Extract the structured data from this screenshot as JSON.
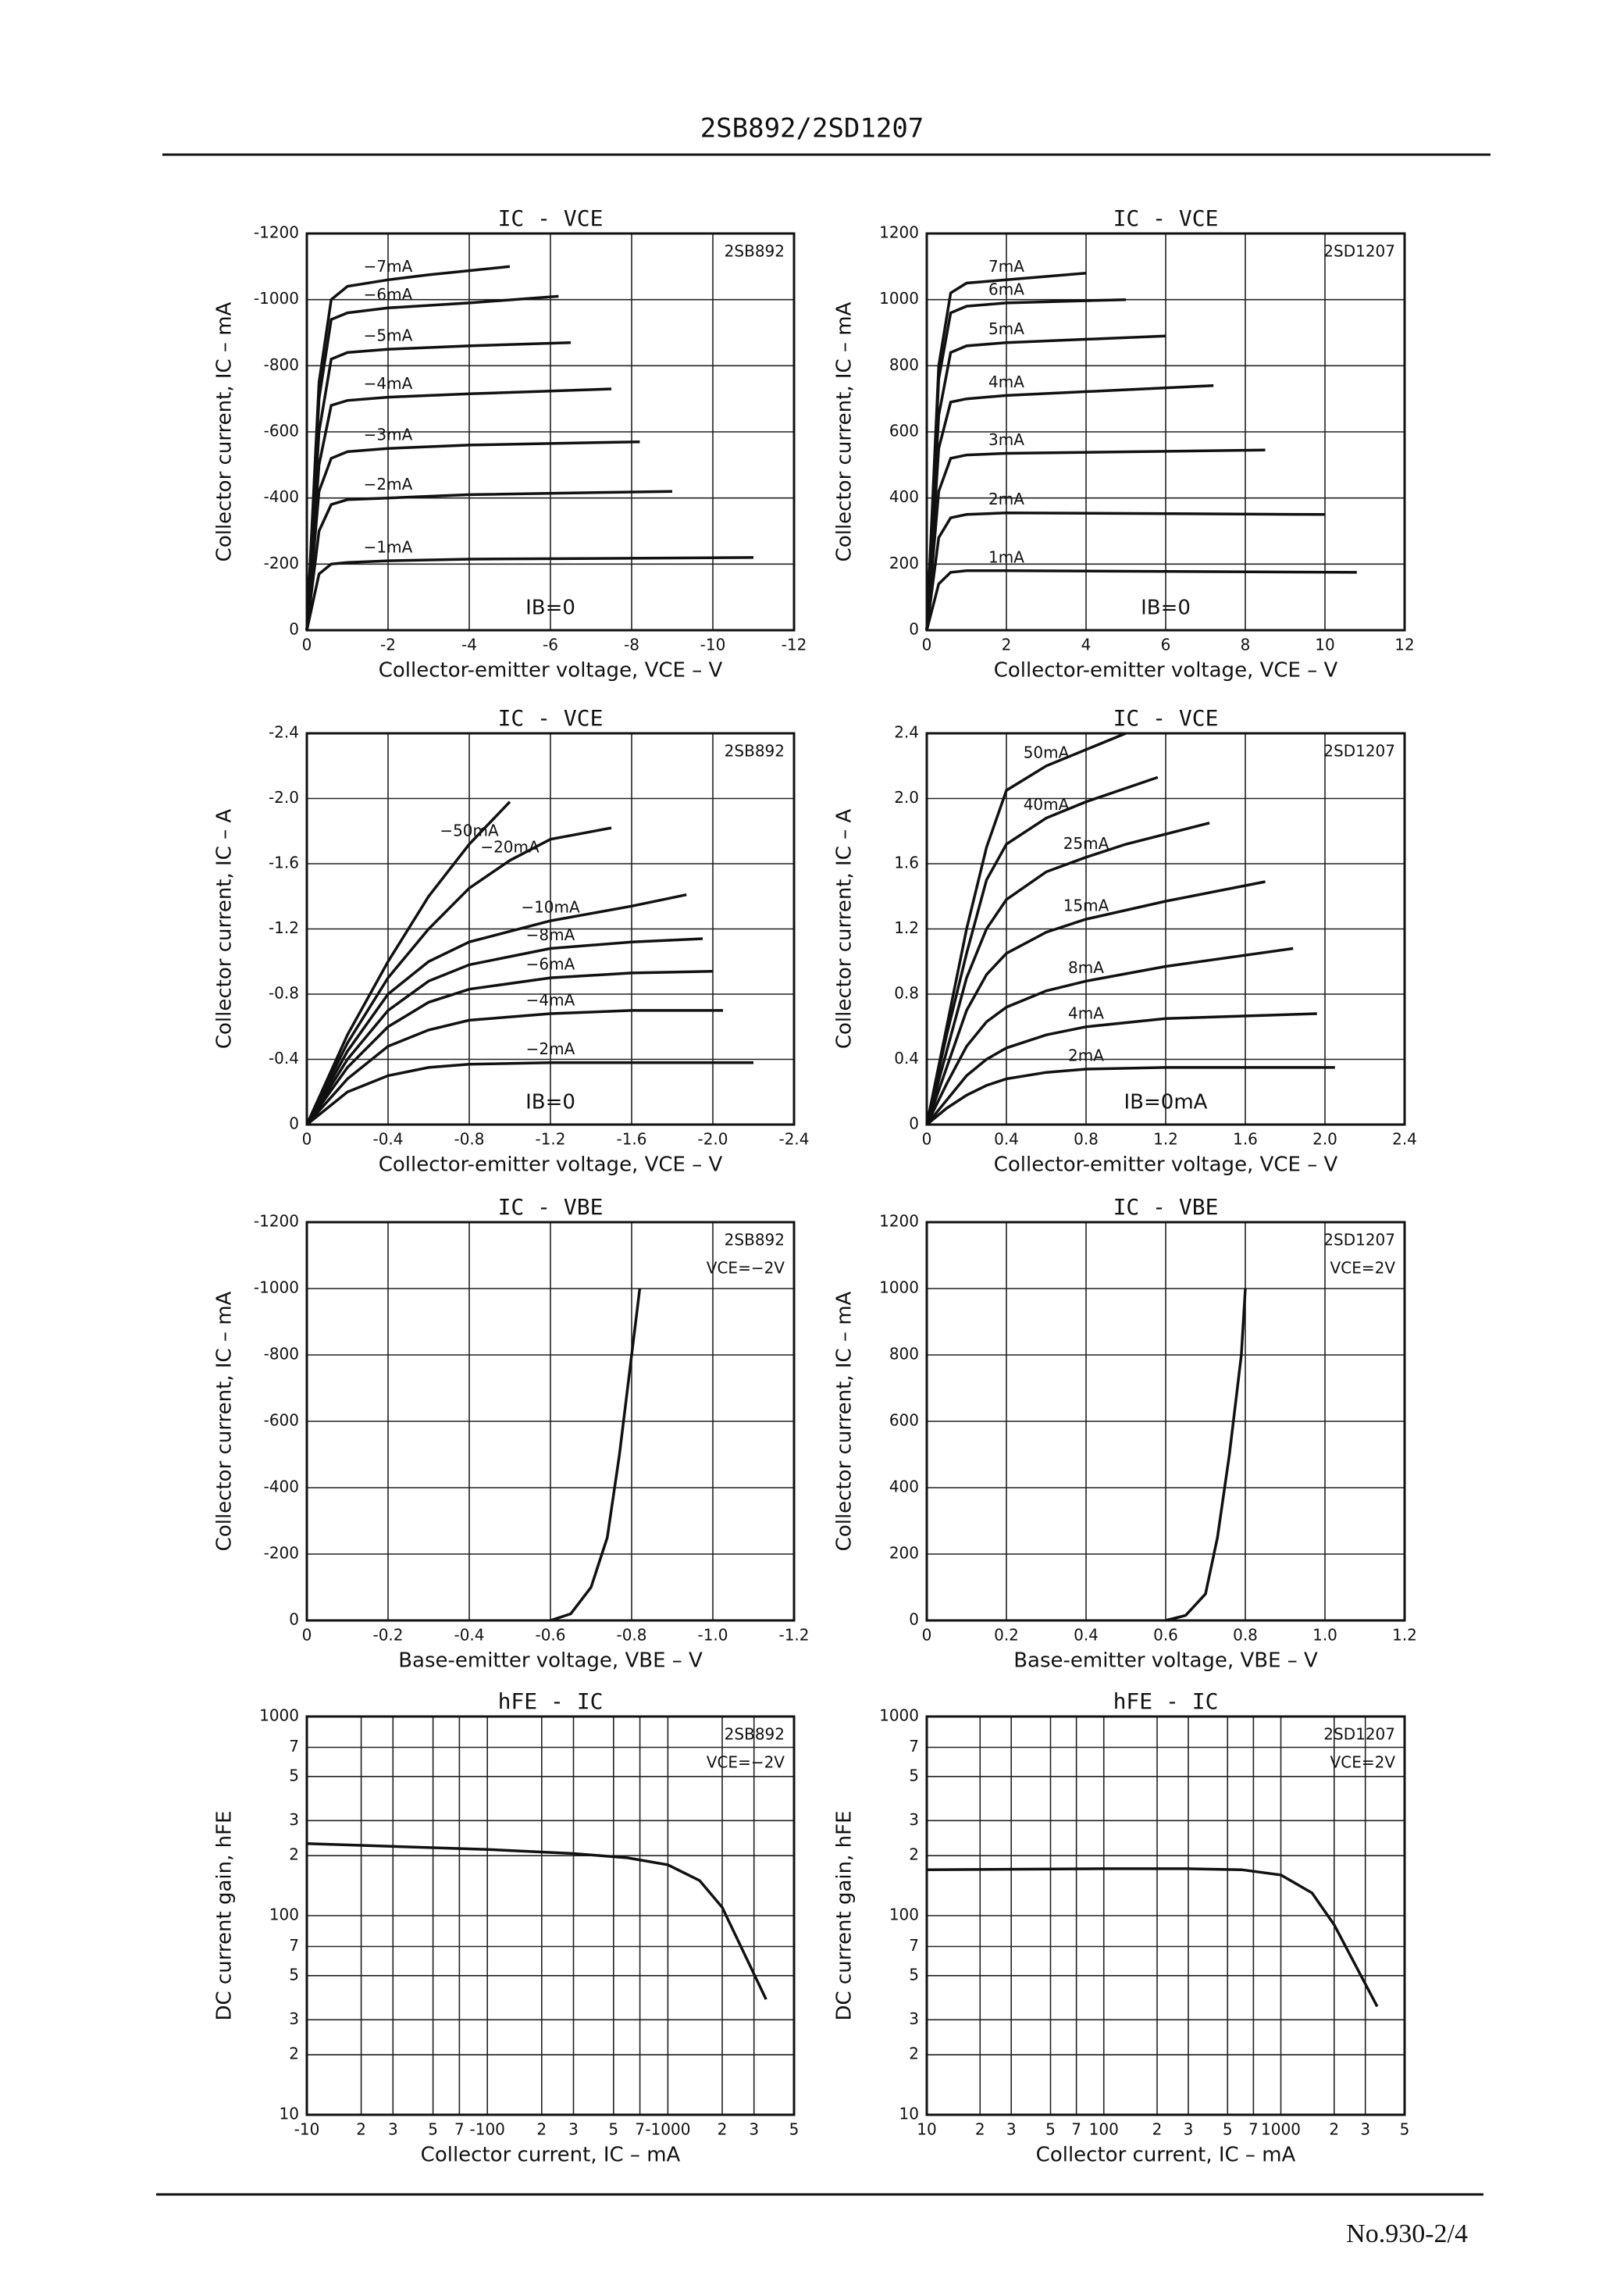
{
  "header": {
    "title": "2SB892/2SD1207"
  },
  "footer": {
    "page": "No.930-2/4"
  },
  "chart_data": [
    {
      "type": "line",
      "title": "IC - VCE",
      "device": "2SB892",
      "note": "IB=0",
      "xlabel": "Collector-emitter voltage, VCE – V",
      "ylabel": "Collector current, IC – mA",
      "xlim": [
        0,
        -12
      ],
      "ylim": [
        0,
        -1200
      ],
      "xticks": [
        0,
        -2,
        -4,
        -6,
        -8,
        -10,
        -12
      ],
      "yticks": [
        0,
        -200,
        -400,
        -600,
        -800,
        -1000,
        -1200
      ],
      "grid": true,
      "series": [
        {
          "name": "−7mA",
          "x": [
            0,
            -0.3,
            -0.6,
            -1,
            -2,
            -3,
            -5
          ],
          "values": [
            0,
            -750,
            -1000,
            -1040,
            -1060,
            -1075,
            -1100
          ]
        },
        {
          "name": "−6mA",
          "x": [
            0,
            -0.3,
            -0.6,
            -1,
            -2,
            -4,
            -6.2
          ],
          "values": [
            0,
            -700,
            -940,
            -960,
            -975,
            -990,
            -1010
          ]
        },
        {
          "name": "−5mA",
          "x": [
            0,
            -0.3,
            -0.6,
            -1,
            -2,
            -4,
            -6.5
          ],
          "values": [
            0,
            -600,
            -820,
            -840,
            -850,
            -860,
            -870
          ]
        },
        {
          "name": "−4mA",
          "x": [
            0,
            -0.3,
            -0.6,
            -1,
            -2,
            -4,
            -7.5
          ],
          "values": [
            0,
            -500,
            -680,
            -695,
            -705,
            -715,
            -730
          ]
        },
        {
          "name": "−3mA",
          "x": [
            0,
            -0.3,
            -0.6,
            -1,
            -2,
            -4,
            -8.2
          ],
          "values": [
            0,
            -420,
            -520,
            -540,
            -550,
            -560,
            -570
          ]
        },
        {
          "name": "−2mA",
          "x": [
            0,
            -0.3,
            -0.6,
            -1,
            -2,
            -4,
            -9
          ],
          "values": [
            0,
            -300,
            -380,
            -395,
            -400,
            -410,
            -420
          ]
        },
        {
          "name": "−1mA",
          "x": [
            0,
            -0.3,
            -0.6,
            -1,
            -2,
            -4,
            -11
          ],
          "values": [
            0,
            -170,
            -200,
            -205,
            -210,
            -215,
            -220
          ]
        }
      ]
    },
    {
      "type": "line",
      "title": "IC - VCE",
      "device": "2SD1207",
      "note": "IB=0",
      "xlabel": "Collector-emitter voltage, VCE – V",
      "ylabel": "Collector current, IC – mA",
      "xlim": [
        0,
        12
      ],
      "ylim": [
        0,
        1200
      ],
      "xticks": [
        0,
        2,
        4,
        6,
        8,
        10,
        12
      ],
      "yticks": [
        0,
        200,
        400,
        600,
        800,
        1000,
        1200
      ],
      "grid": true,
      "series": [
        {
          "name": "7mA",
          "x": [
            0,
            0.3,
            0.6,
            1,
            2,
            4
          ],
          "values": [
            0,
            800,
            1020,
            1050,
            1060,
            1080
          ]
        },
        {
          "name": "6mA",
          "x": [
            0,
            0.3,
            0.6,
            1,
            2,
            5
          ],
          "values": [
            0,
            760,
            960,
            980,
            990,
            1000
          ]
        },
        {
          "name": "5mA",
          "x": [
            0,
            0.3,
            0.6,
            1,
            2,
            6
          ],
          "values": [
            0,
            650,
            840,
            860,
            870,
            890
          ]
        },
        {
          "name": "4mA",
          "x": [
            0,
            0.3,
            0.6,
            1,
            2,
            7.2
          ],
          "values": [
            0,
            550,
            690,
            700,
            710,
            740
          ]
        },
        {
          "name": "3mA",
          "x": [
            0,
            0.3,
            0.6,
            1,
            2,
            8.5
          ],
          "values": [
            0,
            420,
            520,
            530,
            535,
            545
          ]
        },
        {
          "name": "2mA",
          "x": [
            0,
            0.3,
            0.6,
            1,
            2,
            10
          ],
          "values": [
            0,
            280,
            340,
            350,
            355,
            350
          ]
        },
        {
          "name": "1mA",
          "x": [
            0,
            0.3,
            0.6,
            1,
            2,
            10.8
          ],
          "values": [
            0,
            140,
            175,
            180,
            180,
            175
          ]
        }
      ]
    },
    {
      "type": "line",
      "title": "IC - VCE",
      "device": "2SB892",
      "note": "IB=0",
      "xlabel": "Collector-emitter voltage, VCE – V",
      "ylabel": "Collector current, IC – A",
      "xlim": [
        0,
        -2.4
      ],
      "ylim": [
        0,
        -2.4
      ],
      "xticks": [
        0,
        -0.4,
        -0.8,
        -1.2,
        -1.6,
        {
          "value": -2,
          "label": "-2.0"
        },
        -2.4
      ],
      "yticks": [
        0,
        -0.4,
        -0.8,
        -1.2,
        -1.6,
        {
          "value": -2,
          "label": "-2.0"
        },
        -2.4
      ],
      "grid": true,
      "series": [
        {
          "name": "−50mA",
          "x": [
            0,
            -0.2,
            -0.4,
            -0.6,
            -0.8,
            -1.0
          ],
          "values": [
            0,
            -0.55,
            -1.0,
            -1.4,
            -1.72,
            -1.98
          ]
        },
        {
          "name": "−20mA",
          "x": [
            0,
            -0.2,
            -0.4,
            -0.6,
            -0.8,
            -1.0,
            -1.2,
            -1.5
          ],
          "values": [
            0,
            -0.5,
            -0.9,
            -1.2,
            -1.45,
            -1.62,
            -1.75,
            -1.82
          ]
        },
        {
          "name": "−10mA",
          "x": [
            0,
            -0.2,
            -0.4,
            -0.6,
            -0.8,
            -1.2,
            -1.6,
            -1.87
          ],
          "values": [
            0,
            -0.45,
            -0.8,
            -1.0,
            -1.12,
            -1.25,
            -1.34,
            -1.41
          ]
        },
        {
          "name": "−8mA",
          "x": [
            0,
            -0.2,
            -0.4,
            -0.6,
            -0.8,
            -1.2,
            -1.6,
            -1.95
          ],
          "values": [
            0,
            -0.4,
            -0.7,
            -0.88,
            -0.98,
            -1.08,
            -1.12,
            -1.14
          ]
        },
        {
          "name": "−6mA",
          "x": [
            0,
            -0.2,
            -0.4,
            -0.6,
            -0.8,
            -1.2,
            -1.6,
            -2.0
          ],
          "values": [
            0,
            -0.35,
            -0.6,
            -0.75,
            -0.83,
            -0.9,
            -0.93,
            -0.94
          ]
        },
        {
          "name": "−4mA",
          "x": [
            0,
            -0.2,
            -0.4,
            -0.6,
            -0.8,
            -1.2,
            -1.6,
            -2.05
          ],
          "values": [
            0,
            -0.28,
            -0.48,
            -0.58,
            -0.64,
            -0.68,
            -0.7,
            -0.7
          ]
        },
        {
          "name": "−2mA",
          "x": [
            0,
            -0.2,
            -0.4,
            -0.6,
            -0.8,
            -1.2,
            -1.6,
            -2.2
          ],
          "values": [
            0,
            -0.2,
            -0.3,
            -0.35,
            -0.37,
            -0.38,
            -0.38,
            -0.38
          ]
        }
      ]
    },
    {
      "type": "line",
      "title": "IC - VCE",
      "device": "2SD1207",
      "note": "IB=0mA",
      "xlabel": "Collector-emitter voltage, VCE – V",
      "ylabel": "Collector current, IC – A",
      "xlim": [
        0,
        2.4
      ],
      "ylim": [
        0,
        2.4
      ],
      "xticks": [
        0,
        0.4,
        0.8,
        1.2,
        1.6,
        {
          "value": 2,
          "label": "2.0"
        },
        2.4
      ],
      "yticks": [
        0,
        0.4,
        0.8,
        1.2,
        1.6,
        {
          "value": 2,
          "label": "2.0"
        },
        2.4
      ],
      "grid": true,
      "series": [
        {
          "name": "50mA",
          "x": [
            0,
            0.1,
            0.2,
            0.3,
            0.4,
            0.6,
            0.8,
            1.0
          ],
          "values": [
            0,
            0.6,
            1.2,
            1.7,
            2.05,
            2.2,
            2.3,
            2.4
          ]
        },
        {
          "name": "40mA",
          "x": [
            0,
            0.1,
            0.2,
            0.3,
            0.4,
            0.6,
            0.8,
            1.16
          ],
          "values": [
            0,
            0.55,
            1.05,
            1.5,
            1.72,
            1.88,
            1.98,
            2.13
          ]
        },
        {
          "name": "25mA",
          "x": [
            0,
            0.1,
            0.2,
            0.3,
            0.4,
            0.6,
            0.8,
            1.0,
            1.42
          ],
          "values": [
            0,
            0.45,
            0.9,
            1.2,
            1.38,
            1.55,
            1.64,
            1.72,
            1.85
          ]
        },
        {
          "name": "15mA",
          "x": [
            0,
            0.1,
            0.2,
            0.3,
            0.4,
            0.6,
            0.8,
            1.2,
            1.7
          ],
          "values": [
            0,
            0.35,
            0.7,
            0.92,
            1.05,
            1.18,
            1.26,
            1.37,
            1.49
          ]
        },
        {
          "name": "8mA",
          "x": [
            0,
            0.1,
            0.2,
            0.3,
            0.4,
            0.6,
            0.8,
            1.2,
            1.84
          ],
          "values": [
            0,
            0.25,
            0.48,
            0.63,
            0.72,
            0.82,
            0.88,
            0.97,
            1.08
          ]
        },
        {
          "name": "4mA",
          "x": [
            0,
            0.1,
            0.2,
            0.3,
            0.4,
            0.6,
            0.8,
            1.2,
            1.96
          ],
          "values": [
            0,
            0.15,
            0.3,
            0.4,
            0.47,
            0.55,
            0.6,
            0.65,
            0.68
          ]
        },
        {
          "name": "2mA",
          "x": [
            0,
            0.1,
            0.2,
            0.3,
            0.4,
            0.6,
            0.8,
            1.2,
            2.05
          ],
          "values": [
            0,
            0.1,
            0.18,
            0.24,
            0.28,
            0.32,
            0.34,
            0.35,
            0.35
          ]
        }
      ]
    },
    {
      "type": "line",
      "title": "IC - VBE",
      "device": "2SB892",
      "condition": "VCE=−2V",
      "xlabel": "Base-emitter voltage, VBE – V",
      "ylabel": "Collector current, IC – mA",
      "xlim": [
        0,
        -1.2
      ],
      "ylim": [
        0,
        -1200
      ],
      "xticks": [
        0,
        -0.2,
        -0.4,
        -0.6,
        -0.8,
        {
          "value": -1,
          "label": "-1.0"
        },
        -1.2
      ],
      "yticks": [
        0,
        -200,
        -400,
        -600,
        -800,
        -1000,
        -1200
      ],
      "grid": true,
      "series": [
        {
          "x": [
            -0.6,
            -0.65,
            -0.7,
            -0.74,
            -0.77,
            -0.8,
            -0.82
          ],
          "values": [
            0,
            -20,
            -100,
            -250,
            -500,
            -800,
            -1000
          ]
        }
      ]
    },
    {
      "type": "line",
      "title": "IC - VBE",
      "device": "2SD1207",
      "condition": "VCE=2V",
      "xlabel": "Base-emitter voltage, VBE – V",
      "ylabel": "Collector current, IC – mA",
      "xlim": [
        0,
        1.2
      ],
      "ylim": [
        0,
        1200
      ],
      "xticks": [
        0,
        0.2,
        0.4,
        0.6,
        0.8,
        {
          "value": 1,
          "label": "1.0"
        },
        1.2
      ],
      "yticks": [
        0,
        200,
        400,
        600,
        800,
        1000,
        1200
      ],
      "grid": true,
      "series": [
        {
          "x": [
            0.6,
            0.65,
            0.7,
            0.73,
            0.76,
            0.79,
            0.8
          ],
          "values": [
            0,
            15,
            80,
            250,
            500,
            800,
            1000
          ]
        }
      ]
    },
    {
      "type": "line",
      "title": "hFE - IC",
      "device": "2SB892",
      "condition": "VCE=−2V",
      "xlabel": "Collector current, IC – mA",
      "ylabel": "DC current gain, hFE",
      "xscale": "log",
      "yscale": "log",
      "xlim": [
        -10,
        -5000
      ],
      "ylim": [
        10,
        1000
      ],
      "xticks": [
        -10,
        {
          "value": -20,
          "label": "2"
        },
        {
          "value": -30,
          "label": "3"
        },
        {
          "value": -50,
          "label": "5"
        },
        {
          "value": -70,
          "label": "7"
        },
        -100,
        {
          "value": -200,
          "label": "2"
        },
        {
          "value": -300,
          "label": "3"
        },
        {
          "value": -500,
          "label": "5"
        },
        {
          "value": -700,
          "label": "7"
        },
        -1000,
        {
          "value": -2000,
          "label": "2"
        },
        {
          "value": -3000,
          "label": "3"
        },
        {
          "value": -5000,
          "label": "5"
        }
      ],
      "yticks": [
        10,
        {
          "value": 20,
          "label": "2"
        },
        {
          "value": 30,
          "label": "3"
        },
        {
          "value": 50,
          "label": "5"
        },
        {
          "value": 70,
          "label": "7"
        },
        100,
        {
          "value": 200,
          "label": "2"
        },
        {
          "value": 300,
          "label": "3"
        },
        {
          "value": 500,
          "label": "5"
        },
        {
          "value": 700,
          "label": "7"
        },
        1000
      ],
      "grid": true,
      "series": [
        {
          "x": [
            -10,
            -100,
            -300,
            -600,
            -1000,
            -1500,
            -2000,
            -3500
          ],
          "values": [
            230,
            215,
            205,
            195,
            180,
            150,
            110,
            38
          ]
        }
      ]
    },
    {
      "type": "line",
      "title": "hFE - IC",
      "device": "2SD1207",
      "condition": "VCE=2V",
      "xlabel": "Collector current, IC – mA",
      "ylabel": "DC current gain, hFE",
      "xscale": "log",
      "yscale": "log",
      "xlim": [
        10,
        5000
      ],
      "ylim": [
        10,
        1000
      ],
      "xticks": [
        10,
        {
          "value": 20,
          "label": "2"
        },
        {
          "value": 30,
          "label": "3"
        },
        {
          "value": 50,
          "label": "5"
        },
        {
          "value": 70,
          "label": "7"
        },
        100,
        {
          "value": 200,
          "label": "2"
        },
        {
          "value": 300,
          "label": "3"
        },
        {
          "value": 500,
          "label": "5"
        },
        {
          "value": 700,
          "label": "7"
        },
        1000,
        {
          "value": 2000,
          "label": "2"
        },
        {
          "value": 3000,
          "label": "3"
        },
        {
          "value": 5000,
          "label": "5"
        }
      ],
      "yticks": [
        10,
        {
          "value": 20,
          "label": "2"
        },
        {
          "value": 30,
          "label": "3"
        },
        {
          "value": 50,
          "label": "5"
        },
        {
          "value": 70,
          "label": "7"
        },
        100,
        {
          "value": 200,
          "label": "2"
        },
        {
          "value": 300,
          "label": "3"
        },
        {
          "value": 500,
          "label": "5"
        },
        {
          "value": 700,
          "label": "7"
        },
        1000
      ],
      "grid": true,
      "series": [
        {
          "x": [
            10,
            100,
            300,
            600,
            1000,
            1500,
            2000,
            3500
          ],
          "values": [
            170,
            172,
            172,
            170,
            160,
            130,
            90,
            35
          ]
        }
      ]
    }
  ]
}
